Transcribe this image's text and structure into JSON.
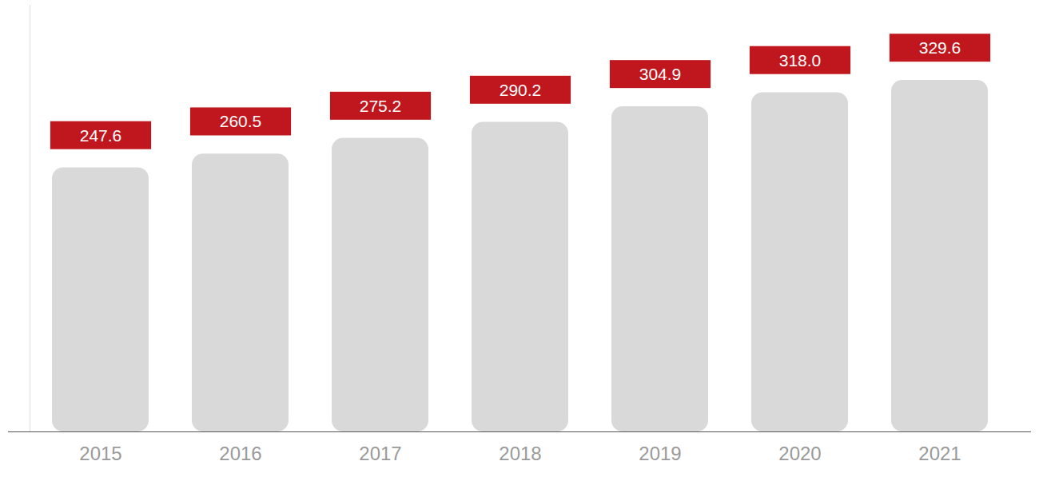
{
  "chart_data": {
    "type": "bar",
    "categories": [
      "2015",
      "2016",
      "2017",
      "2018",
      "2019",
      "2020",
      "2021"
    ],
    "values": [
      247.6,
      260.5,
      275.2,
      290.2,
      304.9,
      318.0,
      329.6
    ],
    "value_labels": [
      "247.6",
      "260.5",
      "275.2",
      "290.2",
      "304.9",
      "318.0",
      "329.6"
    ],
    "color": "#d9d9d9",
    "ylim": [
      0,
      400
    ],
    "data_labels": true,
    "tick_labels": "x"
  }
}
